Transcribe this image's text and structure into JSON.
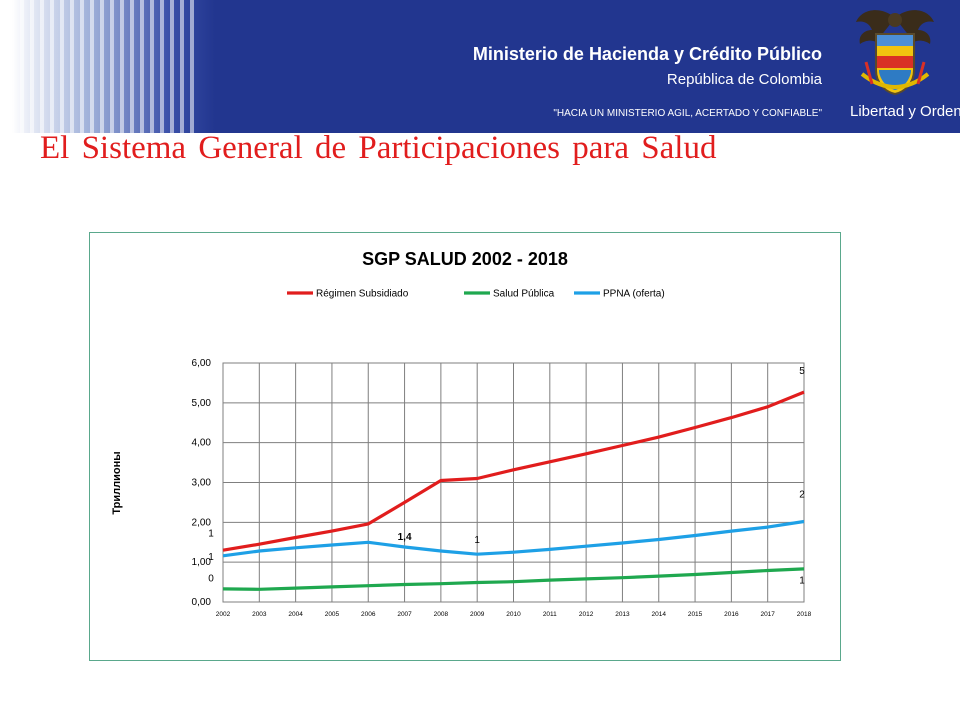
{
  "header": {
    "ministry": "Ministerio de Hacienda y Crédito Público",
    "republic": "República de Colombia",
    "slogan": "\"HACIA UN MINISTERIO AGIL, ACERTADO Y CONFIABLE\"",
    "motto": "Libertad y Orden",
    "colors": {
      "banner": "#22368f",
      "text": "#ffffff"
    },
    "icon": "colombia-coat-of-arms"
  },
  "page": {
    "title": "El Sistema General de Participaciones para Salud",
    "title_color": "#e11d1d"
  },
  "chart_data": {
    "type": "line",
    "title": "SGP SALUD 2002 - 2018",
    "ylabel": "Триллионы",
    "xlabel": "",
    "ylim": [
      0,
      6
    ],
    "yticks": [
      "0,00",
      "1,00",
      "2,00",
      "3,00",
      "4,00",
      "5,00",
      "6,00"
    ],
    "grid": true,
    "legend_position": "top",
    "categories": [
      "2002",
      "2003",
      "2004",
      "2005",
      "2006",
      "2007",
      "2008",
      "2009",
      "2010",
      "2011",
      "2012",
      "2013",
      "2014",
      "2015",
      "2016",
      "2017",
      "2018"
    ],
    "series": [
      {
        "name": "Régimen Subsidiado",
        "color": "#e11d1d",
        "values": [
          1.3,
          1.45,
          1.62,
          1.78,
          1.96,
          2.5,
          3.05,
          3.1,
          3.32,
          3.52,
          3.72,
          3.93,
          4.14,
          4.38,
          4.63,
          4.9,
          5.27
        ]
      },
      {
        "name": "Salud Pública",
        "color": "#1fa84f",
        "values": [
          0.33,
          0.32,
          0.35,
          0.38,
          0.41,
          0.44,
          0.46,
          0.49,
          0.51,
          0.55,
          0.58,
          0.61,
          0.65,
          0.69,
          0.74,
          0.79,
          0.83
        ]
      },
      {
        "name": "PPNA (oferta)",
        "color": "#1ea0e6",
        "values": [
          1.16,
          1.28,
          1.36,
          1.43,
          1.5,
          1.38,
          1.28,
          1.2,
          1.25,
          1.32,
          1.4,
          1.48,
          1.57,
          1.67,
          1.78,
          1.88,
          2.02
        ]
      }
    ],
    "data_labels": [
      {
        "text": "1",
        "x_index": 0,
        "y": 1.75,
        "bold": false
      },
      {
        "text": "1",
        "x_index": 0,
        "y": 1.15,
        "bold": false
      },
      {
        "text": "0",
        "x_index": 0,
        "y": 0.62,
        "bold": false
      },
      {
        "text": "1,4",
        "x_index": 5,
        "y": 1.66,
        "bold": true
      },
      {
        "text": "1",
        "x_index": 7,
        "y": 1.58,
        "bold": false
      },
      {
        "text": "5",
        "x_index": 16,
        "y": 5.82,
        "bold": false
      },
      {
        "text": "2",
        "x_index": 16,
        "y": 2.72,
        "bold": false
      },
      {
        "text": "1",
        "x_index": 16,
        "y": 0.57,
        "bold": false
      }
    ]
  }
}
